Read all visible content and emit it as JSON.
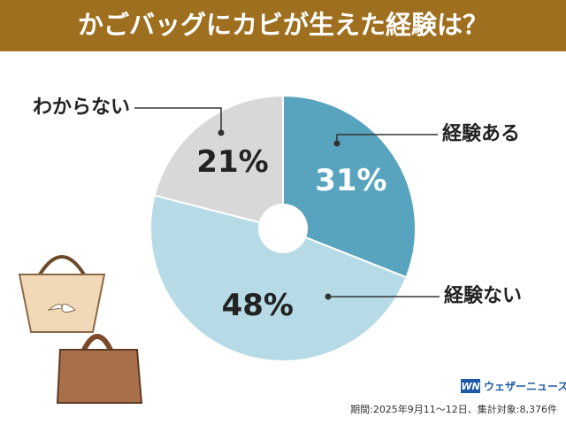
{
  "chart_data": {
    "type": "pie",
    "title": "かごバッグにカビが生えた経験は？",
    "categories": [
      "経験ある",
      "経験ない",
      "わからない"
    ],
    "values": [
      31,
      48,
      21
    ],
    "value_labels": [
      "31%",
      "48%",
      "21%"
    ],
    "colors": [
      "#58a4bf",
      "#b7dbe6",
      "#d8d8d8"
    ],
    "label_colors": [
      "#ffffff",
      "#222222",
      "#222222"
    ],
    "note": "期間:2025年9月11～12日、集計対象:8,376件"
  },
  "logo": {
    "mark": "WN",
    "text": "ウェザーニュース"
  }
}
